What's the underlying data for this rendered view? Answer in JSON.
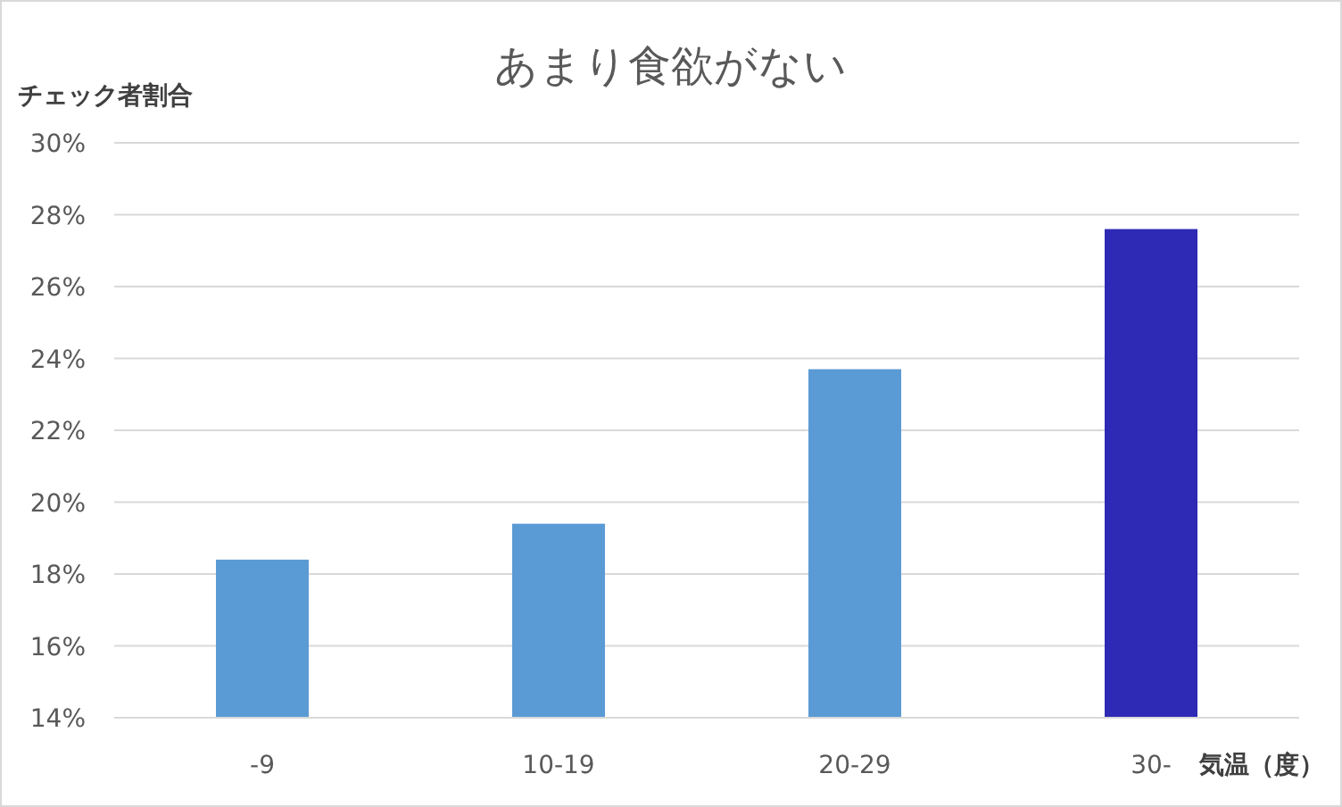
{
  "chart_data": {
    "type": "bar",
    "title": "あまり食欲がない",
    "xlabel": "気温（度）",
    "ylabel": "チェック者割合",
    "categories": [
      "-9",
      "10-19",
      "20-29",
      "30-"
    ],
    "values": [
      18.4,
      19.4,
      23.7,
      27.6
    ],
    "colors": [
      "#5b9bd5",
      "#5b9bd5",
      "#5b9bd5",
      "#2e2ab5"
    ],
    "ylim": [
      14,
      30
    ],
    "yticks": [
      {
        "value": 14,
        "label": "14%"
      },
      {
        "value": 16,
        "label": "16%"
      },
      {
        "value": 18,
        "label": "18%"
      },
      {
        "value": 20,
        "label": "20%"
      },
      {
        "value": 22,
        "label": "22%"
      },
      {
        "value": 24,
        "label": "24%"
      },
      {
        "value": 26,
        "label": "26%"
      },
      {
        "value": 28,
        "label": "28%"
      },
      {
        "value": 30,
        "label": "30%"
      }
    ],
    "grid": "y"
  }
}
